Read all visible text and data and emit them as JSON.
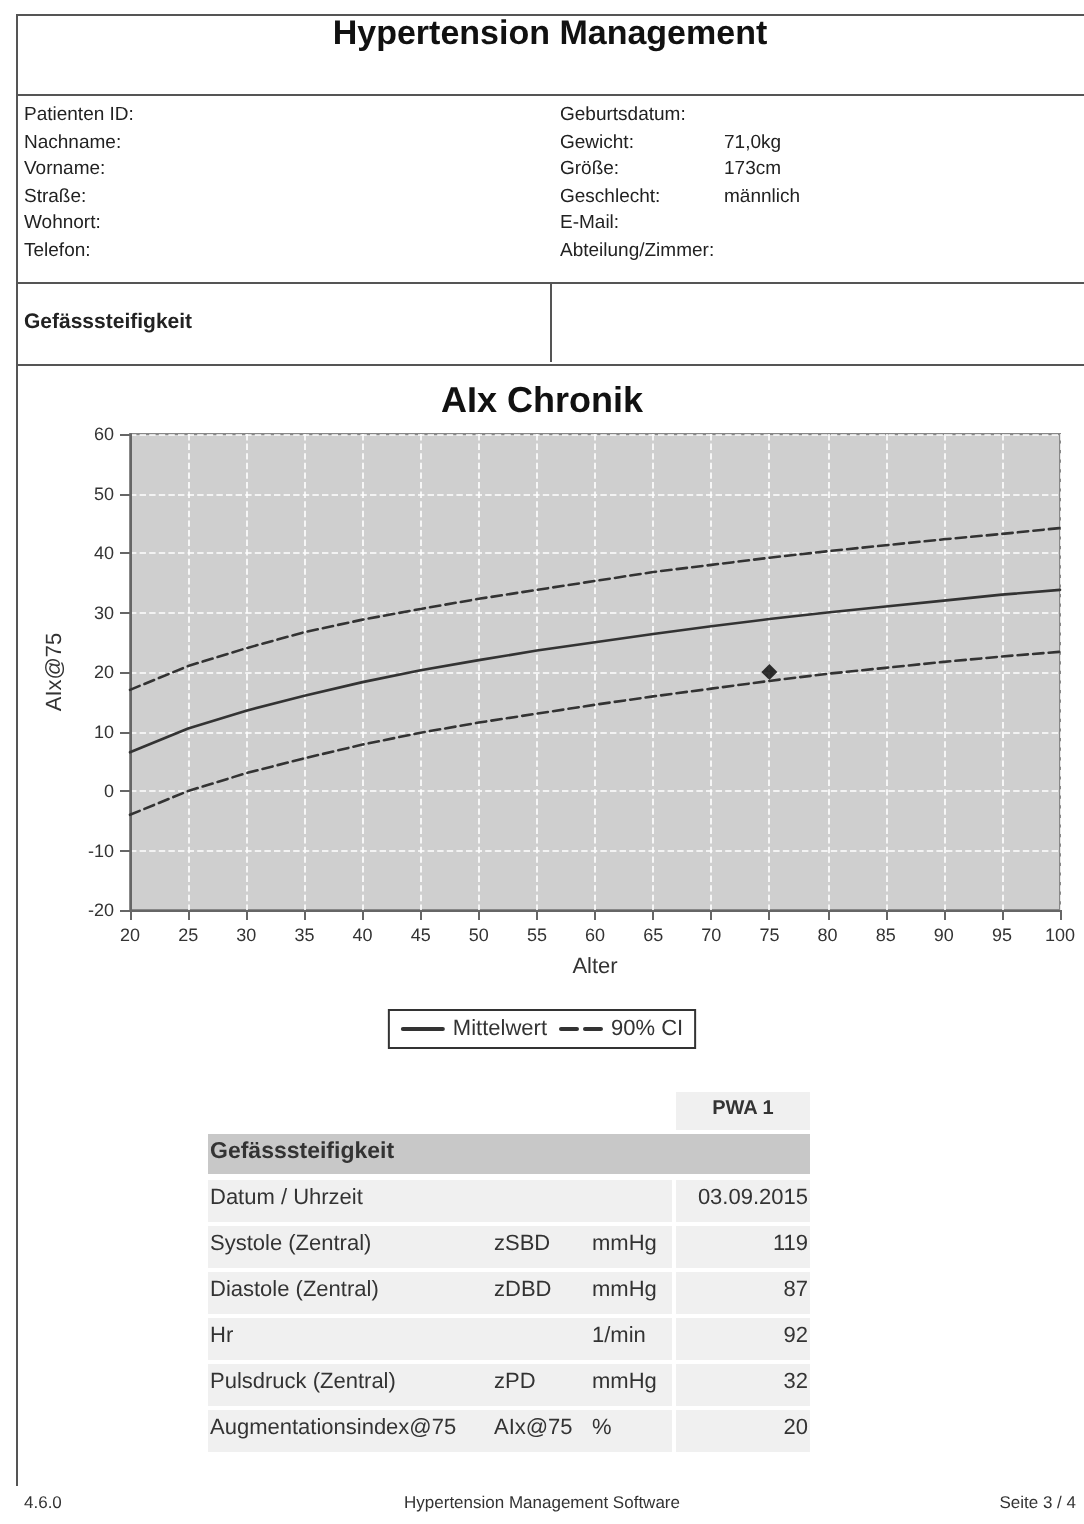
{
  "chart_data": [
    {
      "type": "other",
      "title": "Hypertension Management",
      "annotations": [
        "Patienten ID:",
        "Geburtsdatum:",
        "Nachname:",
        "Gewicht:",
        "71,0kg",
        "Vorname:",
        "Größe:",
        "173cm",
        "Straße:",
        "Geschlecht:",
        "männlich",
        "Wohnort:",
        "E-Mail:",
        "Telefon:",
        "Abteilung/Zimmer:",
        "Gefässsteifigkeit"
      ]
    },
    {
      "type": "line",
      "title": "AIx Chronik",
      "xlabel": "Alter",
      "ylabel": "AIx@75",
      "x": [
        20,
        25,
        30,
        35,
        40,
        45,
        50,
        55,
        60,
        65,
        70,
        75,
        80,
        85,
        90,
        95,
        100
      ],
      "series": [
        {
          "name": "Mittelwert",
          "color": "#333333",
          "line_style": "solid",
          "values": [
            6.5,
            10.5,
            13.5,
            16,
            18.3,
            20.3,
            22,
            23.6,
            25,
            26.4,
            27.7,
            28.9,
            30,
            31,
            32,
            33,
            33.8
          ]
        },
        {
          "name": "90% CI",
          "color": "#333333",
          "line_style": "dashed",
          "values": [
            17,
            21,
            24,
            26.7,
            28.8,
            30.6,
            32.3,
            33.8,
            35.3,
            36.8,
            38,
            39.2,
            40.3,
            41.3,
            42.3,
            43.2,
            44.2
          ]
        },
        {
          "color": "#333333",
          "line_style": "dashed",
          "values": [
            -4,
            0,
            3,
            5.5,
            7.8,
            9.8,
            11.5,
            13,
            14.5,
            15.9,
            17.2,
            18.5,
            19.7,
            20.7,
            21.7,
            22.6,
            23.4
          ]
        },
        {
          "type": "scatter",
          "color": "#000000",
          "marker": "diamond",
          "x": [
            75
          ],
          "values": [
            20
          ]
        }
      ],
      "xlim": [
        20,
        100
      ],
      "xticks": [
        20,
        25,
        30,
        35,
        40,
        45,
        50,
        55,
        60,
        65,
        70,
        75,
        80,
        85,
        90,
        95,
        100
      ],
      "ylim": [
        -20,
        60
      ],
      "yticks": [
        -20,
        -10,
        0,
        10,
        20,
        30,
        40,
        50,
        60
      ],
      "grid": true,
      "legend": "bottom"
    },
    {
      "type": "other",
      "annotations": [
        "PWA 1",
        "Gefässsteifigkeit",
        "Datum / Uhrzeit",
        "03.09.2015",
        "Systole (Zentral)",
        "zSBD",
        "mmHg",
        "119",
        "Diastole (Zentral)",
        "zDBD",
        "mmHg",
        "87",
        "Hr",
        "1/min",
        "92",
        "Pulsdruck (Zentral)",
        "zPD",
        "mmHg",
        "32",
        "Augmentationsindex@75",
        "AIx@75",
        "%",
        "20"
      ]
    },
    {
      "type": "other",
      "annotations": [
        "4.6.0",
        "Hypertension Management Software",
        "Seite 3 / 4"
      ]
    }
  ]
}
